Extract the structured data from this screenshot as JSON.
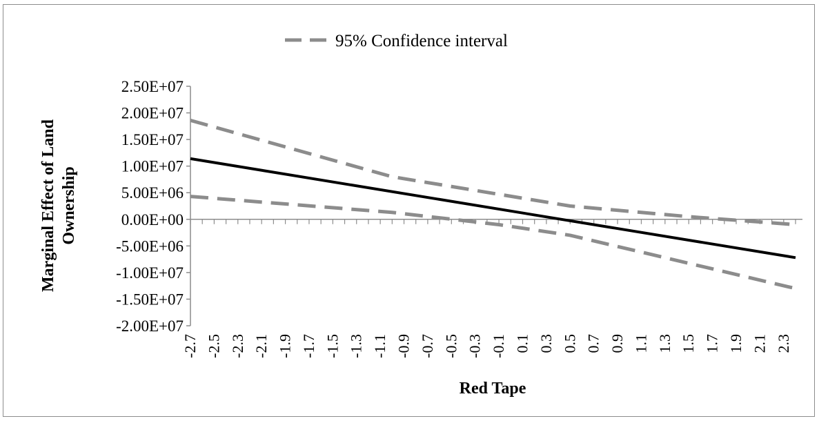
{
  "chart_data": {
    "type": "line",
    "title": "",
    "xlabel": "Red Tape",
    "ylabel_lines": [
      "Marginal Effect of Land",
      "Ownership"
    ],
    "legend": {
      "position": "top-center",
      "entries": [
        {
          "label": "95% Confidence interval",
          "style": "dashed",
          "color": "#8c8c8c"
        }
      ]
    },
    "ylim": [
      -20000000,
      25000000
    ],
    "y_ticks": [
      {
        "value": 25000000,
        "label": "2.50E+07"
      },
      {
        "value": 20000000,
        "label": "2.00E+07"
      },
      {
        "value": 15000000,
        "label": "1.50E+07"
      },
      {
        "value": 10000000,
        "label": "1.00E+07"
      },
      {
        "value": 5000000,
        "label": "5.00E+06"
      },
      {
        "value": 0,
        "label": "0.00E+00"
      },
      {
        "value": -5000000,
        "label": "-5.00E+06"
      },
      {
        "value": -10000000,
        "label": "-1.00E+07"
      },
      {
        "value": -15000000,
        "label": "-1.50E+07"
      },
      {
        "value": -20000000,
        "label": "-2.00E+07"
      }
    ],
    "xlim": [
      -2.7,
      2.4
    ],
    "x_ticks": [
      "-2.7",
      "-2.5",
      "-2.3",
      "-2.1",
      "-1.9",
      "-1.7",
      "-1.5",
      "-1.3",
      "-1.1",
      "-0.9",
      "-0.7",
      "-0.5",
      "-0.3",
      "-0.1",
      "0.1",
      "0.3",
      "0.5",
      "0.7",
      "0.9",
      "1.1",
      "1.3",
      "1.5",
      "1.7",
      "1.9",
      "2.1",
      "2.3"
    ],
    "grid": false,
    "series": [
      {
        "color": "#000000",
        "style": "solid",
        "x": [
          -2.7,
          2.4
        ],
        "y": [
          11400000,
          -7200000
        ]
      },
      {
        "color": "#8c8c8c",
        "style": "dashed",
        "x": [
          -2.7,
          -1.0,
          0.5,
          1.5,
          2.4
        ],
        "y": [
          18600000,
          8000000,
          2500000,
          500000,
          -1000000
        ]
      },
      {
        "color": "#8c8c8c",
        "style": "dashed",
        "x": [
          -2.7,
          -1.0,
          -0.1,
          0.5,
          2.4
        ],
        "y": [
          4300000,
          1300000,
          -1000000,
          -3000000,
          -13000000
        ]
      }
    ]
  }
}
